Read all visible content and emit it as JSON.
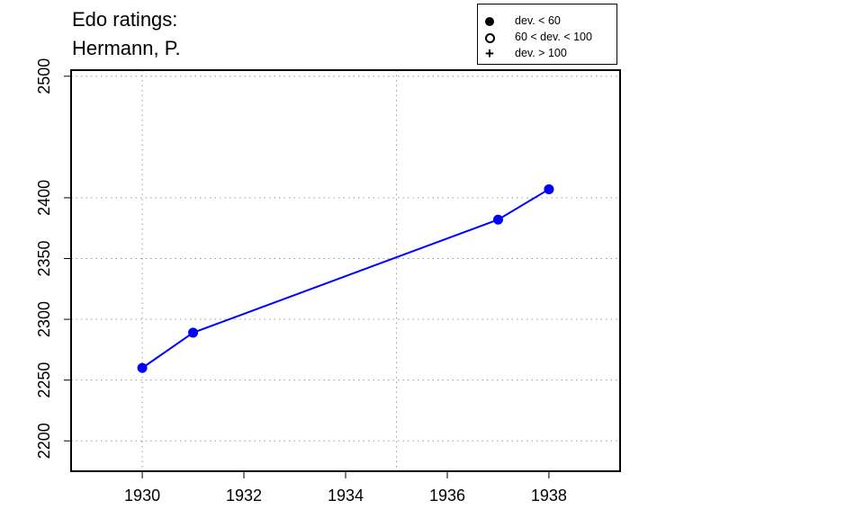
{
  "title": [
    "Edo ratings:",
    "Hermann, P."
  ],
  "legend": [
    {
      "symbol": "filled-circle",
      "label": "dev. < 60"
    },
    {
      "symbol": "open-circle",
      "label": "60 < dev. < 100"
    },
    {
      "symbol": "plus",
      "label": "dev. > 100"
    }
  ],
  "chart_data": {
    "type": "line",
    "title": "Edo ratings: Hermann, P.",
    "xlabel": "",
    "ylabel": "",
    "xlim": [
      1928.6,
      1939.4
    ],
    "ylim": [
      2175,
      2505
    ],
    "x_ticks": [
      "1930",
      "1932",
      "1934",
      "1936",
      "1938"
    ],
    "y_ticks": [
      "2200",
      "2250",
      "2300",
      "2350",
      "2400",
      "2500"
    ],
    "grid": "dotted",
    "legend_position": "top-right",
    "series": [
      {
        "color": "#0000ff",
        "marker": "filled-circle",
        "x": [
          1930,
          1931,
          1937,
          1938
        ],
        "y": [
          2260,
          2289,
          2382,
          2407
        ]
      }
    ]
  }
}
